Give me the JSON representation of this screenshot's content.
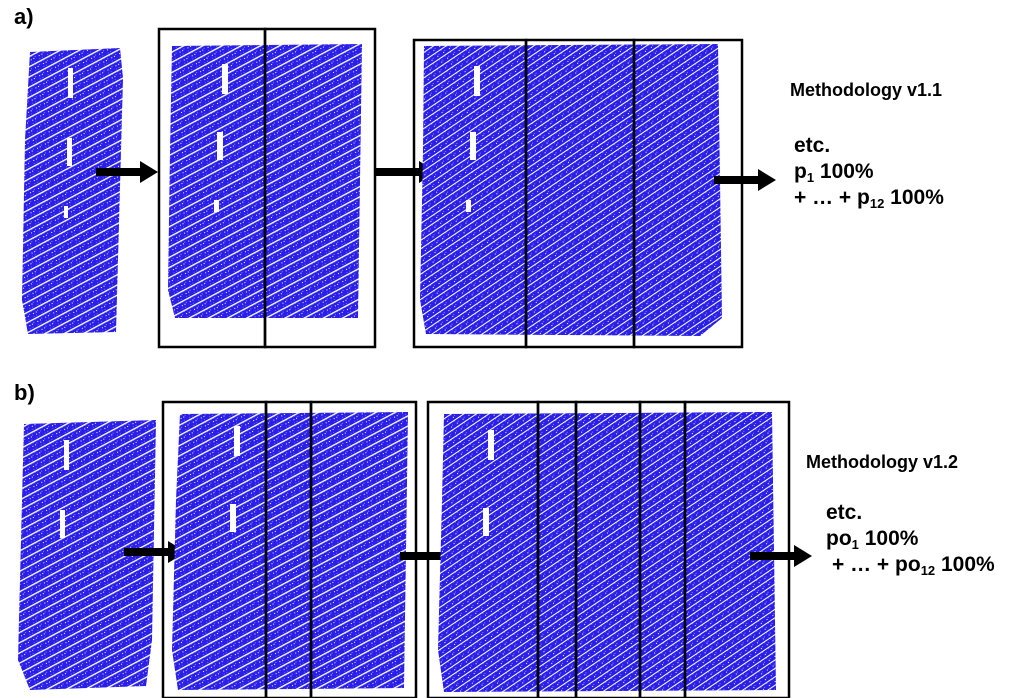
{
  "colors": {
    "points": "#1f14e6",
    "frame": "#000000",
    "text": "#000000"
  },
  "panels": [
    {
      "id": "a",
      "label": "a)",
      "methodology": "Methodology v1.1",
      "etc": "etc.",
      "first_term": {
        "base": "p",
        "sub": "1",
        "tail": " 100%"
      },
      "sum_line": {
        "prefix": "+ … + ",
        "base": "p",
        "sub": "12",
        "tail": " 100%"
      }
    },
    {
      "id": "b",
      "label": "b)",
      "methodology": "Methodology v1.2",
      "etc": "etc.",
      "first_term": {
        "base": "po",
        "sub": "1",
        "tail": " 100%"
      },
      "sum_line": {
        "prefix": "+ … + ",
        "base": "po",
        "sub": "12",
        "tail": " 100%"
      }
    }
  ],
  "icons": [
    "arrow-right-icon"
  ]
}
